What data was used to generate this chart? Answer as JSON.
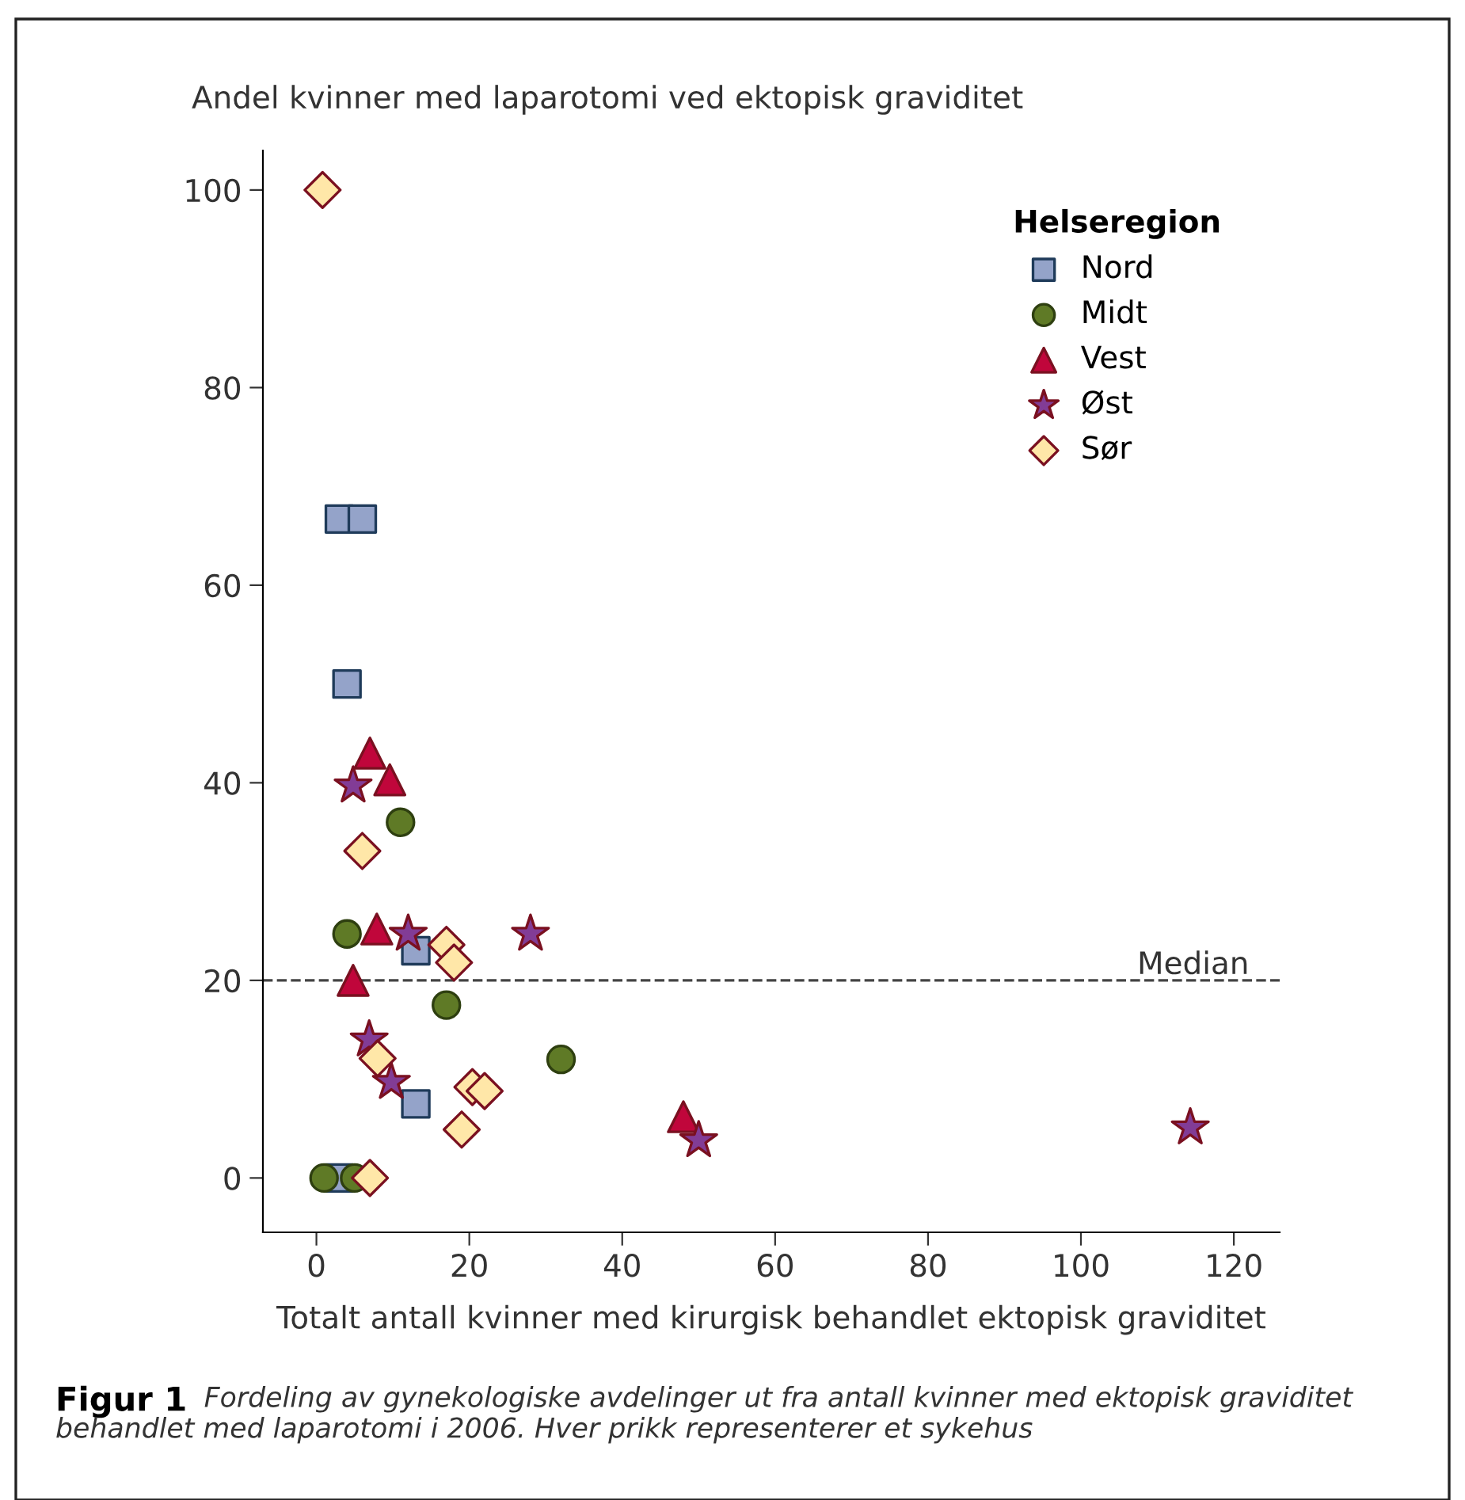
{
  "chart_data": {
    "type": "scatter",
    "xlabel": "Totalt antall kvinner med kirurgisk behandlet ektopisk graviditet",
    "ylabel": "Andel kvinner med laparotomi ved ektopisk graviditet",
    "legend_title": "Helseregion",
    "legend": "top right",
    "grid": false,
    "xlim": [
      -7,
      126
    ],
    "ylim": [
      -5.5,
      104
    ],
    "xticks": [
      0,
      20,
      40,
      60,
      80,
      100,
      120
    ],
    "yticks": [
      0,
      20,
      40,
      60,
      80,
      100
    ],
    "ref_lines": [
      {
        "axis": "y",
        "value": 20,
        "label": "Median",
        "line_style": "dashed",
        "color": "#444444"
      }
    ],
    "annotations": [
      "Figur 1",
      "Fordeling av gynekologiske avdelinger ut fra antall kvinner med ektopisk graviditet behandlet med laparotomi i 2006. Hver prikk representerer et sykehus"
    ],
    "series": [
      {
        "name": "Nord",
        "color": "#94a3c9",
        "marker": "square",
        "x": [
          3,
          6,
          4,
          13,
          13,
          3
        ],
        "values": [
          66.7,
          66.7,
          50,
          23,
          7.5,
          0
        ]
      },
      {
        "name": "Midt",
        "color": "#5f7a26",
        "marker": "circle",
        "x": [
          4,
          11,
          17,
          32,
          1,
          5
        ],
        "values": [
          24.7,
          36,
          17.5,
          12,
          0,
          0
        ]
      },
      {
        "name": "Vest",
        "color": "#c0063b",
        "marker": "triangle",
        "x": [
          7,
          9.6,
          7.9,
          4.8,
          48
        ],
        "values": [
          43,
          40.3,
          25.2,
          20,
          6.2
        ]
      },
      {
        "name": "Øst",
        "color": "#823c96",
        "marker": "star",
        "x": [
          4.8,
          12,
          28,
          6.9,
          9.8,
          50,
          114.3
        ],
        "values": [
          39.7,
          24.7,
          24.7,
          14,
          9.7,
          3.8,
          5.1
        ]
      },
      {
        "name": "Sør",
        "color": "#ffe7a8",
        "marker": "diamond",
        "x": [
          0.8,
          6,
          17,
          18,
          8,
          20.4,
          22,
          19,
          7
        ],
        "values": [
          100,
          33.1,
          23.6,
          21.8,
          12.1,
          9.2,
          8.8,
          4.9,
          0
        ]
      }
    ]
  }
}
